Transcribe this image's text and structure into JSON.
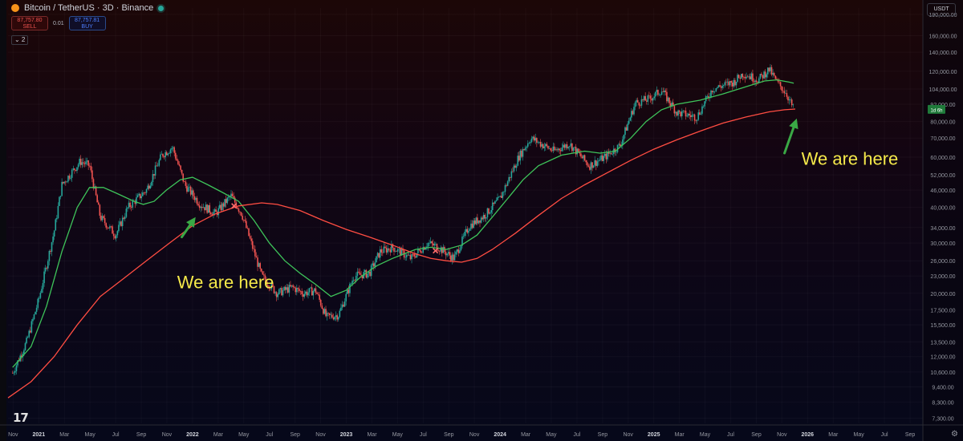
{
  "header": {
    "title": "Bitcoin / TetherUS · 3D · Binance"
  },
  "trade": {
    "sell_price": "87,757.80",
    "sell_label": "SELL",
    "spread": "0.01",
    "buy_price": "87,757.81",
    "buy_label": "BUY"
  },
  "collapse_label": "⌄ 2",
  "currency": "USDT",
  "icons": {
    "coin": "bitcoin-icon",
    "live": "live-status-icon",
    "logo": "tradingview-logo-icon",
    "settings": "gear-icon"
  },
  "logo_text": "17",
  "settings_glyph": "⚙",
  "colors": {
    "up": "#26a69a",
    "down": "#ef5350",
    "ma_fast": "#3ec45a",
    "ma_slow": "#ff4d42",
    "annotation": "#f5e94a",
    "arrow": "#3aa845",
    "badge": "#1f7a3a"
  },
  "chart_data": {
    "type": "candlestick",
    "scale": "log",
    "ylim": [
      7000,
      200000
    ],
    "y_ticks": [
      {
        "v": 7300,
        "label": "7,300.00"
      },
      {
        "v": 8300,
        "label": "8,300.00"
      },
      {
        "v": 9400,
        "label": "9,400.00"
      },
      {
        "v": 10600,
        "label": "10,600.00"
      },
      {
        "v": 12000,
        "label": "12,000.00"
      },
      {
        "v": 13500,
        "label": "13,500.00"
      },
      {
        "v": 15500,
        "label": "15,500.00"
      },
      {
        "v": 17500,
        "label": "17,500.00"
      },
      {
        "v": 20000,
        "label": "20,000.00"
      },
      {
        "v": 23000,
        "label": "23,000.00"
      },
      {
        "v": 26000,
        "label": "26,000.00"
      },
      {
        "v": 30000,
        "label": "30,000.00"
      },
      {
        "v": 34000,
        "label": "34,000.00"
      },
      {
        "v": 40000,
        "label": "40,000.00"
      },
      {
        "v": 46000,
        "label": "46,000.00"
      },
      {
        "v": 52000,
        "label": "52,000.00"
      },
      {
        "v": 60000,
        "label": "60,000.00"
      },
      {
        "v": 70000,
        "label": "70,000.00"
      },
      {
        "v": 80000,
        "label": "80,000.00"
      },
      {
        "v": 92000,
        "label": "92,000.00"
      },
      {
        "v": 104000,
        "label": "104,000.00"
      },
      {
        "v": 120000,
        "label": "120,000.00"
      },
      {
        "v": 140000,
        "label": "140,000.00"
      },
      {
        "v": 160000,
        "label": "160,000.00"
      },
      {
        "v": 190000,
        "label": "190,000.00"
      }
    ],
    "x_range": [
      2020.8,
      2026.75
    ],
    "x_ticks": [
      {
        "t": 2020.833,
        "label": "Nov",
        "year": false
      },
      {
        "t": 2021.0,
        "label": "2021",
        "year": true
      },
      {
        "t": 2021.167,
        "label": "Mar",
        "year": false
      },
      {
        "t": 2021.333,
        "label": "May",
        "year": false
      },
      {
        "t": 2021.5,
        "label": "Jul",
        "year": false
      },
      {
        "t": 2021.667,
        "label": "Sep",
        "year": false
      },
      {
        "t": 2021.833,
        "label": "Nov",
        "year": false
      },
      {
        "t": 2022.0,
        "label": "2022",
        "year": true
      },
      {
        "t": 2022.167,
        "label": "Mar",
        "year": false
      },
      {
        "t": 2022.333,
        "label": "May",
        "year": false
      },
      {
        "t": 2022.5,
        "label": "Jul",
        "year": false
      },
      {
        "t": 2022.667,
        "label": "Sep",
        "year": false
      },
      {
        "t": 2022.833,
        "label": "Nov",
        "year": false
      },
      {
        "t": 2023.0,
        "label": "2023",
        "year": true
      },
      {
        "t": 2023.167,
        "label": "Mar",
        "year": false
      },
      {
        "t": 2023.333,
        "label": "May",
        "year": false
      },
      {
        "t": 2023.5,
        "label": "Jul",
        "year": false
      },
      {
        "t": 2023.667,
        "label": "Sep",
        "year": false
      },
      {
        "t": 2023.833,
        "label": "Nov",
        "year": false
      },
      {
        "t": 2024.0,
        "label": "2024",
        "year": true
      },
      {
        "t": 2024.167,
        "label": "Mar",
        "year": false
      },
      {
        "t": 2024.333,
        "label": "May",
        "year": false
      },
      {
        "t": 2024.5,
        "label": "Jul",
        "year": false
      },
      {
        "t": 2024.667,
        "label": "Sep",
        "year": false
      },
      {
        "t": 2024.833,
        "label": "Nov",
        "year": false
      },
      {
        "t": 2025.0,
        "label": "2025",
        "year": true
      },
      {
        "t": 2025.167,
        "label": "Mar",
        "year": false
      },
      {
        "t": 2025.333,
        "label": "May",
        "year": false
      },
      {
        "t": 2025.5,
        "label": "Jul",
        "year": false
      },
      {
        "t": 2025.667,
        "label": "Sep",
        "year": false
      },
      {
        "t": 2025.833,
        "label": "Nov",
        "year": false
      },
      {
        "t": 2026.0,
        "label": "2026",
        "year": true
      },
      {
        "t": 2026.167,
        "label": "Mar",
        "year": false
      },
      {
        "t": 2026.333,
        "label": "May",
        "year": false
      },
      {
        "t": 2026.5,
        "label": "Jul",
        "year": false
      },
      {
        "t": 2026.667,
        "label": "Sep",
        "year": false
      }
    ],
    "price_path": [
      [
        2020.83,
        10500
      ],
      [
        2020.92,
        13500
      ],
      [
        2021.0,
        19000
      ],
      [
        2021.1,
        33000
      ],
      [
        2021.15,
        48000
      ],
      [
        2021.27,
        58000
      ],
      [
        2021.33,
        56000
      ],
      [
        2021.4,
        37000
      ],
      [
        2021.5,
        32000
      ],
      [
        2021.58,
        40000
      ],
      [
        2021.7,
        46000
      ],
      [
        2021.8,
        61000
      ],
      [
        2021.87,
        65000
      ],
      [
        2021.95,
        48000
      ],
      [
        2022.05,
        41000
      ],
      [
        2022.15,
        38000
      ],
      [
        2022.25,
        44000
      ],
      [
        2022.32,
        38000
      ],
      [
        2022.45,
        23000
      ],
      [
        2022.55,
        20000
      ],
      [
        2022.65,
        21000
      ],
      [
        2022.72,
        20000
      ],
      [
        2022.8,
        20500
      ],
      [
        2022.87,
        16500
      ],
      [
        2022.95,
        16800
      ],
      [
        2023.05,
        23000
      ],
      [
        2023.15,
        23500
      ],
      [
        2023.22,
        28000
      ],
      [
        2023.3,
        29000
      ],
      [
        2023.42,
        26500
      ],
      [
        2023.53,
        30000
      ],
      [
        2023.6,
        29000
      ],
      [
        2023.7,
        26500
      ],
      [
        2023.8,
        34500
      ],
      [
        2023.9,
        37500
      ],
      [
        2024.0,
        43000
      ],
      [
        2024.12,
        60000
      ],
      [
        2024.2,
        70000
      ],
      [
        2024.35,
        63000
      ],
      [
        2024.45,
        67000
      ],
      [
        2024.58,
        56000
      ],
      [
        2024.68,
        60000
      ],
      [
        2024.78,
        66000
      ],
      [
        2024.88,
        93000
      ],
      [
        2024.97,
        96000
      ],
      [
        2025.05,
        103000
      ],
      [
        2025.15,
        86000
      ],
      [
        2025.28,
        83000
      ],
      [
        2025.38,
        104000
      ],
      [
        2025.52,
        110000
      ],
      [
        2025.58,
        118000
      ],
      [
        2025.68,
        112000
      ],
      [
        2025.75,
        122000
      ],
      [
        2025.8,
        110000
      ],
      [
        2025.86,
        101000
      ],
      [
        2025.91,
        88000
      ]
    ],
    "series": [
      {
        "name": "",
        "color": "#3ec45a",
        "points": [
          [
            2020.83,
            11000
          ],
          [
            2020.95,
            13000
          ],
          [
            2021.05,
            18000
          ],
          [
            2021.15,
            28000
          ],
          [
            2021.25,
            40000
          ],
          [
            2021.33,
            47000
          ],
          [
            2021.42,
            47000
          ],
          [
            2021.5,
            45000
          ],
          [
            2021.62,
            42000
          ],
          [
            2021.68,
            41000
          ],
          [
            2021.75,
            42000
          ],
          [
            2021.83,
            46000
          ],
          [
            2021.92,
            50000
          ],
          [
            2022.0,
            51000
          ],
          [
            2022.1,
            48000
          ],
          [
            2022.2,
            45000
          ],
          [
            2022.3,
            42000
          ],
          [
            2022.4,
            36000
          ],
          [
            2022.5,
            30000
          ],
          [
            2022.6,
            26000
          ],
          [
            2022.7,
            23500
          ],
          [
            2022.8,
            21500
          ],
          [
            2022.9,
            19500
          ],
          [
            2023.0,
            20500
          ],
          [
            2023.1,
            23000
          ],
          [
            2023.2,
            25000
          ],
          [
            2023.3,
            26500
          ],
          [
            2023.45,
            28500
          ],
          [
            2023.55,
            29000
          ],
          [
            2023.65,
            28500
          ],
          [
            2023.75,
            29500
          ],
          [
            2023.85,
            32000
          ],
          [
            2023.95,
            37000
          ],
          [
            2024.05,
            43000
          ],
          [
            2024.15,
            50000
          ],
          [
            2024.25,
            56000
          ],
          [
            2024.4,
            61000
          ],
          [
            2024.55,
            63000
          ],
          [
            2024.65,
            62000
          ],
          [
            2024.75,
            63000
          ],
          [
            2024.85,
            70000
          ],
          [
            2024.95,
            80000
          ],
          [
            2025.05,
            88000
          ],
          [
            2025.15,
            92000
          ],
          [
            2025.3,
            95000
          ],
          [
            2025.45,
            100000
          ],
          [
            2025.6,
            106000
          ],
          [
            2025.72,
            111000
          ],
          [
            2025.8,
            112000
          ],
          [
            2025.88,
            110000
          ],
          [
            2025.91,
            109000
          ]
        ]
      },
      {
        "name": "",
        "color": "#ff4d42",
        "points": [
          [
            2020.8,
            8600
          ],
          [
            2020.95,
            9800
          ],
          [
            2021.1,
            12000
          ],
          [
            2021.25,
            15500
          ],
          [
            2021.4,
            19500
          ],
          [
            2021.55,
            22500
          ],
          [
            2021.7,
            26000
          ],
          [
            2021.85,
            30000
          ],
          [
            2022.0,
            34500
          ],
          [
            2022.15,
            38000
          ],
          [
            2022.3,
            40500
          ],
          [
            2022.45,
            41500
          ],
          [
            2022.55,
            41000
          ],
          [
            2022.7,
            39000
          ],
          [
            2022.85,
            36000
          ],
          [
            2023.0,
            33500
          ],
          [
            2023.15,
            31500
          ],
          [
            2023.3,
            29500
          ],
          [
            2023.45,
            27500
          ],
          [
            2023.55,
            26500
          ],
          [
            2023.65,
            26000
          ],
          [
            2023.75,
            25700
          ],
          [
            2023.85,
            26500
          ],
          [
            2023.95,
            28500
          ],
          [
            2024.1,
            32500
          ],
          [
            2024.25,
            37500
          ],
          [
            2024.4,
            43000
          ],
          [
            2024.55,
            48000
          ],
          [
            2024.7,
            53000
          ],
          [
            2024.85,
            58500
          ],
          [
            2025.0,
            64000
          ],
          [
            2025.15,
            69000
          ],
          [
            2025.3,
            74000
          ],
          [
            2025.45,
            79000
          ],
          [
            2025.6,
            83000
          ],
          [
            2025.75,
            86500
          ],
          [
            2025.85,
            88000
          ],
          [
            2025.92,
            88500
          ]
        ]
      }
    ],
    "last_price_badge": {
      "label": "1d 6h",
      "value": 88000
    },
    "crossover_markers": [
      {
        "t": 2022.27,
        "v": 40500
      },
      {
        "t": 2023.58,
        "v": 28200
      }
    ],
    "annotations": [
      {
        "text": "We are here",
        "t": 2021.9,
        "v": 20800
      },
      {
        "text": "We are here",
        "t": 2025.96,
        "v": 56500
      }
    ],
    "arrows": [
      {
        "from": [
          2021.93,
          31500
        ],
        "to": [
          2022.02,
          37000
        ]
      },
      {
        "from": [
          2025.85,
          62000
        ],
        "to": [
          2025.93,
          82000
        ]
      }
    ]
  }
}
